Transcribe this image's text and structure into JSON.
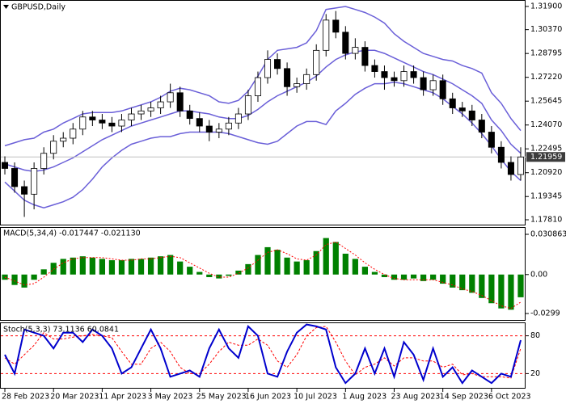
{
  "chart_data": [
    {
      "type": "candlestick",
      "title": "GBPUSD,Daily",
      "categories": [
        "28 Feb 2023",
        null,
        null,
        null,
        null,
        "20 Mar 2023",
        null,
        null,
        null,
        null,
        "11 Apr 2023",
        null,
        null,
        null,
        null,
        "3 May 2023",
        null,
        null,
        null,
        null,
        "25 May 2023",
        null,
        null,
        null,
        null,
        "16 Jun 2023",
        null,
        null,
        null,
        null,
        "10 Jul 2023",
        null,
        null,
        null,
        null,
        "1 Aug 2023",
        null,
        null,
        null,
        null,
        "23 Aug 2023",
        null,
        null,
        null,
        null,
        "14 Sep 2023",
        null,
        null,
        null,
        null,
        "6 Oct 2023",
        null,
        null,
        null
      ],
      "open": [
        1.216,
        1.212,
        1.2,
        1.195,
        1.212,
        1.222,
        1.23,
        1.232,
        1.238,
        1.246,
        1.244,
        1.242,
        1.24,
        1.244,
        1.248,
        1.25,
        1.252,
        1.256,
        1.262,
        1.25,
        1.245,
        1.24,
        1.236,
        1.238,
        1.242,
        1.248,
        1.26,
        1.272,
        1.284,
        1.278,
        1.266,
        1.268,
        1.274,
        1.29,
        1.31,
        1.302,
        1.288,
        1.292,
        1.28,
        1.276,
        1.272,
        1.27,
        1.276,
        1.272,
        1.264,
        1.27,
        1.258,
        1.252,
        1.25,
        1.244,
        1.236,
        1.226,
        1.216,
        1.208
      ],
      "high": [
        1.22,
        1.216,
        1.204,
        1.216,
        1.226,
        1.234,
        1.236,
        1.242,
        1.25,
        1.25,
        1.248,
        1.246,
        1.248,
        1.252,
        1.254,
        1.256,
        1.26,
        1.268,
        1.266,
        1.254,
        1.249,
        1.244,
        1.242,
        1.246,
        1.252,
        1.264,
        1.276,
        1.29,
        1.288,
        1.282,
        1.272,
        1.278,
        1.294,
        1.314,
        1.316,
        1.306,
        1.298,
        1.296,
        1.284,
        1.28,
        1.276,
        1.28,
        1.28,
        1.276,
        1.274,
        1.274,
        1.262,
        1.256,
        1.254,
        1.248,
        1.24,
        1.23,
        1.22,
        1.226
      ],
      "low": [
        1.208,
        1.196,
        1.18,
        1.185,
        1.208,
        1.218,
        1.226,
        1.228,
        1.234,
        1.24,
        1.238,
        1.236,
        1.236,
        1.24,
        1.244,
        1.246,
        1.248,
        1.252,
        1.246,
        1.241,
        1.236,
        1.23,
        1.232,
        1.234,
        1.238,
        1.244,
        1.256,
        1.268,
        1.274,
        1.26,
        1.262,
        1.264,
        1.27,
        1.286,
        1.298,
        1.284,
        1.284,
        1.276,
        1.272,
        1.264,
        1.266,
        1.266,
        1.268,
        1.26,
        1.26,
        1.254,
        1.248,
        1.246,
        1.24,
        1.232,
        1.222,
        1.212,
        1.204,
        1.204
      ],
      "close": [
        1.212,
        1.2,
        1.195,
        1.212,
        1.222,
        1.23,
        1.232,
        1.238,
        1.246,
        1.244,
        1.242,
        1.24,
        1.244,
        1.248,
        1.25,
        1.252,
        1.256,
        1.262,
        1.25,
        1.245,
        1.24,
        1.236,
        1.238,
        1.242,
        1.248,
        1.26,
        1.272,
        1.284,
        1.278,
        1.266,
        1.268,
        1.274,
        1.29,
        1.31,
        1.302,
        1.288,
        1.292,
        1.28,
        1.276,
        1.272,
        1.27,
        1.276,
        1.272,
        1.264,
        1.27,
        1.258,
        1.252,
        1.25,
        1.244,
        1.236,
        1.226,
        1.216,
        1.208,
        1.21959
      ],
      "up_color": "#ffffff",
      "down_color": "#000000",
      "candle_outline": "#000000",
      "bands": {
        "color": "#6a5fd8",
        "upper": [
          1.227,
          1.229,
          1.231,
          1.232,
          1.236,
          1.238,
          1.242,
          1.245,
          1.248,
          1.249,
          1.249,
          1.249,
          1.25,
          1.252,
          1.254,
          1.256,
          1.259,
          1.263,
          1.265,
          1.264,
          1.262,
          1.26,
          1.256,
          1.255,
          1.257,
          1.263,
          1.273,
          1.284,
          1.29,
          1.291,
          1.292,
          1.295,
          1.303,
          1.317,
          1.318,
          1.319,
          1.317,
          1.315,
          1.312,
          1.308,
          1.301,
          1.296,
          1.292,
          1.288,
          1.286,
          1.284,
          1.283,
          1.28,
          1.278,
          1.275,
          1.262,
          1.255,
          1.245,
          1.237
        ],
        "middle": [
          1.215,
          1.213,
          1.211,
          1.21,
          1.211,
          1.213,
          1.216,
          1.219,
          1.223,
          1.227,
          1.231,
          1.234,
          1.237,
          1.24,
          1.242,
          1.244,
          1.246,
          1.248,
          1.25,
          1.25,
          1.249,
          1.248,
          1.246,
          1.245,
          1.245,
          1.247,
          1.251,
          1.256,
          1.26,
          1.263,
          1.266,
          1.269,
          1.273,
          1.279,
          1.284,
          1.287,
          1.289,
          1.29,
          1.29,
          1.288,
          1.285,
          1.282,
          1.279,
          1.276,
          1.274,
          1.271,
          1.268,
          1.264,
          1.26,
          1.255,
          1.244,
          1.237,
          1.228,
          1.222
        ],
        "lower": [
          1.203,
          1.197,
          1.191,
          1.188,
          1.186,
          1.188,
          1.19,
          1.193,
          1.198,
          1.205,
          1.213,
          1.219,
          1.224,
          1.228,
          1.23,
          1.232,
          1.233,
          1.233,
          1.235,
          1.236,
          1.236,
          1.236,
          1.236,
          1.235,
          1.233,
          1.231,
          1.229,
          1.228,
          1.23,
          1.235,
          1.24,
          1.243,
          1.243,
          1.241,
          1.25,
          1.255,
          1.261,
          1.265,
          1.268,
          1.268,
          1.269,
          1.268,
          1.266,
          1.264,
          1.262,
          1.258,
          1.253,
          1.248,
          1.242,
          1.235,
          1.227,
          1.218,
          1.21,
          1.204
        ]
      },
      "last_price": 1.21959,
      "last_price_color": "#c0c0c0",
      "last_label_bg": "#3c3c3c",
      "ylim": [
        1.1781,
        1.319
      ],
      "yticks": [
        {
          "value": 1.319,
          "label": "1.31900"
        },
        {
          "value": 1.3037,
          "label": "1.30370"
        },
        {
          "value": 1.28795,
          "label": "1.28795"
        },
        {
          "value": 1.2722,
          "label": "1.27220"
        },
        {
          "value": 1.25645,
          "label": "1.25645"
        },
        {
          "value": 1.2407,
          "label": "1.24070"
        },
        {
          "value": 1.22495,
          "label": "1.22495"
        },
        {
          "value": 1.2092,
          "label": "1.20920"
        },
        {
          "value": 1.19345,
          "label": "1.19345"
        },
        {
          "value": 1.1781,
          "label": "1.17810"
        }
      ]
    },
    {
      "type": "macd",
      "title": "MACD(5,34,4) -0.017447 -0.021130",
      "values": [
        -0.004,
        -0.008,
        -0.01,
        -0.004,
        0.004,
        0.009,
        0.012,
        0.013,
        0.014,
        0.013,
        0.012,
        0.011,
        0.011,
        0.012,
        0.012,
        0.013,
        0.014,
        0.015,
        0.01,
        0.006,
        0.002,
        -0.002,
        -0.003,
        -0.001,
        0.003,
        0.008,
        0.015,
        0.021,
        0.019,
        0.013,
        0.01,
        0.011,
        0.018,
        0.028,
        0.025,
        0.016,
        0.012,
        0.006,
        0.002,
        -0.002,
        -0.004,
        -0.004,
        -0.003,
        -0.005,
        -0.004,
        -0.007,
        -0.01,
        -0.012,
        -0.014,
        -0.018,
        -0.022,
        -0.026,
        -0.027,
        -0.017447
      ],
      "color": "#008000",
      "signal": {
        "color": "#ff0000",
        "values": [
          -0.002,
          -0.005,
          -0.008,
          -0.007,
          -0.002,
          0.004,
          0.009,
          0.012,
          0.013,
          0.013,
          0.013,
          0.012,
          0.011,
          0.011,
          0.012,
          0.012,
          0.013,
          0.014,
          0.013,
          0.009,
          0.005,
          0.001,
          -0.002,
          -0.002,
          0.001,
          0.005,
          0.011,
          0.017,
          0.019,
          0.016,
          0.012,
          0.011,
          0.015,
          0.023,
          0.025,
          0.02,
          0.015,
          0.009,
          0.004,
          0.0,
          -0.003,
          -0.004,
          -0.004,
          -0.004,
          -0.004,
          -0.006,
          -0.008,
          -0.011,
          -0.013,
          -0.016,
          -0.02,
          -0.024,
          -0.026,
          -0.02113
        ]
      },
      "ylim": [
        -0.0299,
        0.030863
      ],
      "yticks": [
        0.030863,
        {
          "value": 0,
          "label": "0.00"
        },
        -0.0299
      ]
    },
    {
      "type": "stochastic",
      "title": "Stoch(5,3,3) 73.1136 60.0841",
      "main": {
        "color": "#0000cd",
        "values": [
          50,
          20,
          90,
          85,
          80,
          60,
          85,
          85,
          70,
          90,
          80,
          60,
          20,
          30,
          60,
          90,
          60,
          15,
          20,
          25,
          15,
          60,
          90,
          60,
          45,
          95,
          80,
          20,
          15,
          55,
          85,
          98,
          95,
          90,
          30,
          5,
          20,
          60,
          20,
          60,
          15,
          70,
          50,
          10,
          60,
          15,
          30,
          5,
          25,
          15,
          5,
          20,
          15,
          73.1136
        ]
      },
      "signal": {
        "color": "#ff0000",
        "values": [
          45,
          35,
          50,
          65,
          85,
          75,
          75,
          78,
          80,
          82,
          80,
          77,
          55,
          35,
          35,
          60,
          70,
          55,
          30,
          20,
          20,
          35,
          55,
          70,
          65,
          65,
          75,
          65,
          40,
          30,
          50,
          80,
          93,
          95,
          70,
          40,
          18,
          30,
          35,
          45,
          32,
          45,
          45,
          40,
          40,
          30,
          35,
          18,
          20,
          15,
          15,
          15,
          13,
          60.0841
        ]
      },
      "ylim": [
        0,
        100
      ],
      "yticks": [
        20,
        80
      ],
      "grid": true,
      "grid_color": "#ff0000"
    }
  ]
}
